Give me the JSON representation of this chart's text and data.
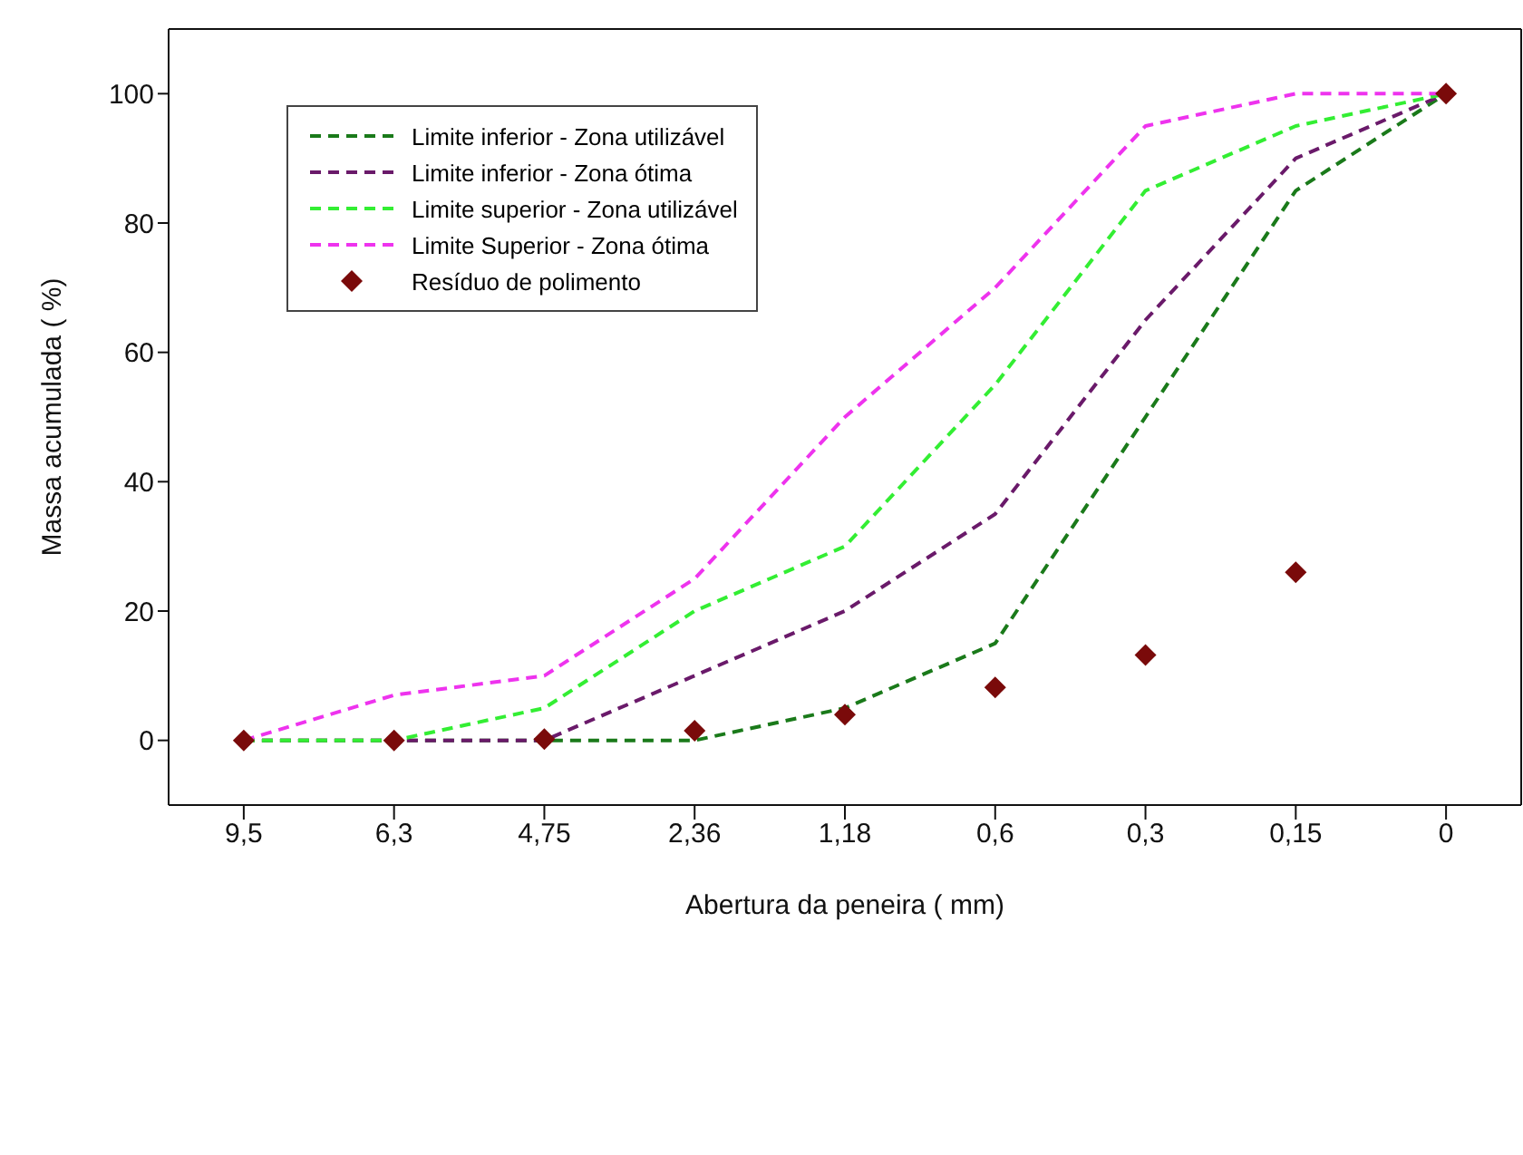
{
  "chart_data": {
    "type": "line",
    "xlabel": "Abertura da peneira  ( mm)",
    "ylabel": "Massa acumulada  ( %)",
    "categories": [
      "9,5",
      "6,3",
      "4,75",
      "2,36",
      "1,18",
      "0,6",
      "0,3",
      "0,15",
      "0"
    ],
    "series": [
      {
        "name": "Limite inferior - Zona utilizável",
        "color": "#1a7a1a",
        "values": [
          0,
          0,
          0,
          0,
          5,
          15,
          50,
          85,
          100
        ],
        "line_style": "dashed"
      },
      {
        "name": "Limite inferior - Zona ótima",
        "color": "#6a1a6a",
        "values": [
          0,
          0,
          0,
          10,
          20,
          35,
          65,
          90,
          100
        ],
        "line_style": "dashed"
      },
      {
        "name": "Limite superior - Zona utilizável",
        "color": "#33ee33",
        "values": [
          0,
          0,
          5,
          20,
          30,
          55,
          85,
          95,
          100
        ],
        "line_style": "dashed"
      },
      {
        "name": "Limite Superior - Zona ótima",
        "color": "#ee33ee",
        "values": [
          0,
          7,
          10,
          25,
          50,
          70,
          95,
          100,
          100
        ],
        "line_style": "dashed"
      },
      {
        "name": "Resíduo de polimento",
        "color": "#7a0a0a",
        "type": "scatter",
        "marker": "diamond",
        "values": [
          0,
          0,
          0.2,
          1.5,
          4,
          8.2,
          13.2,
          26,
          100
        ]
      }
    ],
    "ylim": [
      -10,
      110
    ],
    "yticks": [
      0,
      20,
      40,
      60,
      80,
      100
    ],
    "legend": "top left",
    "marker": "none"
  }
}
